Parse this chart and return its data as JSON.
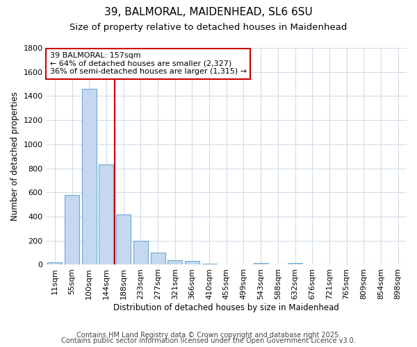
{
  "title_line1": "39, BALMORAL, MAIDENHEAD, SL6 6SU",
  "title_line2": "Size of property relative to detached houses in Maidenhead",
  "xlabel": "Distribution of detached houses by size in Maidenhead",
  "ylabel": "Number of detached properties",
  "categories": [
    "11sqm",
    "55sqm",
    "100sqm",
    "144sqm",
    "188sqm",
    "233sqm",
    "277sqm",
    "321sqm",
    "366sqm",
    "410sqm",
    "455sqm",
    "499sqm",
    "543sqm",
    "588sqm",
    "632sqm",
    "676sqm",
    "721sqm",
    "765sqm",
    "809sqm",
    "854sqm",
    "898sqm"
  ],
  "values": [
    18,
    580,
    1460,
    830,
    420,
    200,
    100,
    35,
    30,
    10,
    0,
    0,
    15,
    0,
    15,
    0,
    0,
    0,
    0,
    0,
    0
  ],
  "bar_color": "#c5d8f0",
  "bar_edge_color": "#6aaad4",
  "background_color": "#ffffff",
  "grid_color": "#d0dce8",
  "vline_x": 3.5,
  "vline_color": "#cc0000",
  "ylim": [
    0,
    1800
  ],
  "yticks": [
    0,
    200,
    400,
    600,
    800,
    1000,
    1200,
    1400,
    1600,
    1800
  ],
  "annotation_title": "39 BALMORAL: 157sqm",
  "annotation_line1": "← 64% of detached houses are smaller (2,327)",
  "annotation_line2": "36% of semi-detached houses are larger (1,315) →",
  "annotation_box_color": "#ffffff",
  "annotation_box_edge_color": "#cc0000",
  "footer_line1": "Contains HM Land Registry data © Crown copyright and database right 2025.",
  "footer_line2": "Contains public sector information licensed under the Open Government Licence v3.0.",
  "title_fontsize": 11,
  "subtitle_fontsize": 9.5,
  "annotation_fontsize": 8,
  "footer_fontsize": 7,
  "xlabel_fontsize": 8.5,
  "ylabel_fontsize": 8.5,
  "tick_fontsize": 8,
  "xtick_fontsize": 8
}
